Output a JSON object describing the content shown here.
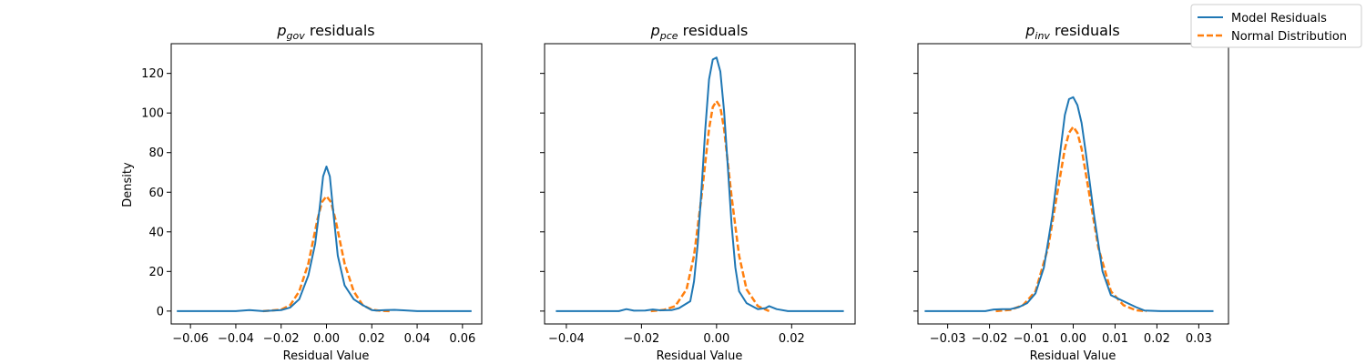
{
  "legend": {
    "items": [
      {
        "label": "Model Residuals",
        "color": "#1f77b4",
        "style": "solid"
      },
      {
        "label": "Normal Distribution",
        "color": "#ff7f0e",
        "style": "dashed"
      }
    ],
    "placement": "top-right"
  },
  "chart_data": [
    {
      "type": "line",
      "title_main": "p",
      "title_sub": "gov",
      "title_rest": " residuals",
      "xlabel": "Residual Value",
      "ylabel": "Density",
      "xlim": [
        -0.0685,
        0.0685
      ],
      "ylim": [
        -6.5,
        135
      ],
      "xticks": [
        -0.06,
        -0.04,
        -0.02,
        0.0,
        0.02,
        0.04,
        0.06
      ],
      "xtick_labels": [
        "−0.06",
        "−0.04",
        "−0.02",
        "0.00",
        "0.02",
        "0.04",
        "0.06"
      ],
      "yticks": [
        0,
        20,
        40,
        60,
        80,
        100,
        120
      ],
      "ytick_labels": [
        "0",
        "20",
        "40",
        "60",
        "80",
        "100",
        "120"
      ],
      "show_ytick_labels": true,
      "series": [
        {
          "name": "Model Residuals",
          "x": [
            -0.066,
            -0.04,
            -0.034,
            -0.028,
            -0.02,
            -0.016,
            -0.012,
            -0.008,
            -0.005,
            -0.003,
            -0.0015,
            0.0,
            0.0015,
            0.003,
            0.005,
            0.008,
            0.012,
            0.016,
            0.02,
            0.022,
            0.026,
            0.03,
            0.034,
            0.04,
            0.064
          ],
          "y": [
            0,
            0,
            0.5,
            0,
            0.5,
            1.8,
            6,
            18,
            34,
            52,
            68,
            73,
            68,
            50,
            28,
            13,
            6,
            3,
            0.5,
            0.3,
            0.5,
            0.6,
            0.4,
            0,
            0
          ]
        },
        {
          "name": "Normal Distribution",
          "x": [
            -0.028,
            -0.02,
            -0.016,
            -0.012,
            -0.008,
            -0.004,
            -0.002,
            0.0,
            0.002,
            0.004,
            0.008,
            0.012,
            0.016,
            0.02,
            0.024,
            0.028
          ],
          "y": [
            0,
            0.7,
            3,
            10,
            24,
            46,
            55,
            58,
            55,
            46,
            24,
            10,
            3,
            0.7,
            0.1,
            0
          ]
        }
      ]
    },
    {
      "type": "line",
      "title_main": "p",
      "title_sub": "pce",
      "title_rest": " residuals",
      "xlabel": "Residual Value",
      "ylabel": "",
      "xlim": [
        -0.0458,
        0.0369
      ],
      "ylim": [
        -6.5,
        135
      ],
      "xticks": [
        -0.04,
        -0.02,
        0.0,
        0.02
      ],
      "xtick_labels": [
        "−0.04",
        "−0.02",
        "0.00",
        "0.02"
      ],
      "yticks": [
        0,
        20,
        40,
        60,
        80,
        100,
        120
      ],
      "ytick_labels": [
        "0",
        "20",
        "40",
        "60",
        "80",
        "100",
        "120"
      ],
      "show_ytick_labels": false,
      "series": [
        {
          "name": "Model Residuals",
          "x": [
            -0.0428,
            -0.026,
            -0.024,
            -0.022,
            -0.019,
            -0.017,
            -0.015,
            -0.012,
            -0.01,
            -0.007,
            -0.006,
            -0.005,
            -0.004,
            -0.003,
            -0.002,
            -0.001,
            0.0,
            0.001,
            0.002,
            0.003,
            0.004,
            0.005,
            0.006,
            0.008,
            0.011,
            0.013,
            0.014,
            0.016,
            0.019,
            0.0339
          ],
          "y": [
            0,
            0,
            1,
            0.2,
            0.3,
            0.8,
            0.4,
            0.5,
            1.5,
            5,
            15,
            34,
            62,
            92,
            117,
            127,
            128,
            121,
            101,
            73,
            44,
            22,
            10,
            4,
            1,
            1.5,
            2.5,
            1,
            0,
            0
          ]
        },
        {
          "name": "Normal Distribution",
          "x": [
            -0.0175,
            -0.014,
            -0.011,
            -0.008,
            -0.006,
            -0.004,
            -0.002,
            -0.001,
            0.0,
            0.001,
            0.002,
            0.004,
            0.006,
            0.008,
            0.011,
            0.014
          ],
          "y": [
            0,
            0.6,
            2.5,
            11,
            28,
            58,
            92,
            103,
            106,
            103,
            92,
            58,
            28,
            11,
            2.5,
            0
          ]
        }
      ]
    },
    {
      "type": "line",
      "title_main": "p",
      "title_sub": "inv",
      "title_rest": " residuals",
      "xlabel": "Residual Value",
      "ylabel": "",
      "xlim": [
        -0.0371,
        0.0371
      ],
      "ylim": [
        -6.5,
        135
      ],
      "xticks": [
        -0.03,
        -0.02,
        -0.01,
        0.0,
        0.01,
        0.02,
        0.03
      ],
      "xtick_labels": [
        "−0.03",
        "−0.02",
        "−0.01",
        "0.00",
        "0.01",
        "0.02",
        "0.03"
      ],
      "yticks": [
        0,
        20,
        40,
        60,
        80,
        100,
        120
      ],
      "ytick_labels": [
        "0",
        "20",
        "40",
        "60",
        "80",
        "100",
        "120"
      ],
      "show_ytick_labels": false,
      "series": [
        {
          "name": "Model Residuals",
          "x": [
            -0.0355,
            -0.021,
            -0.019,
            -0.017,
            -0.015,
            -0.013,
            -0.011,
            -0.009,
            -0.007,
            -0.005,
            -0.003,
            -0.002,
            -0.001,
            0.0,
            0.001,
            0.002,
            0.003,
            0.005,
            0.007,
            0.009,
            0.011,
            0.013,
            0.015,
            0.017,
            0.021,
            0.0335
          ],
          "y": [
            0,
            0,
            0.8,
            1,
            1,
            2,
            4,
            9,
            22,
            48,
            82,
            99,
            107,
            108,
            104,
            95,
            80,
            48,
            20,
            8,
            6,
            4,
            2,
            0.3,
            0,
            0
          ]
        },
        {
          "name": "Normal Distribution",
          "x": [
            -0.0185,
            -0.015,
            -0.012,
            -0.009,
            -0.006,
            -0.004,
            -0.002,
            -0.001,
            0.0,
            0.001,
            0.002,
            0.004,
            0.006,
            0.009,
            0.012,
            0.015,
            0.0175
          ],
          "y": [
            0,
            0.6,
            3,
            10,
            32,
            57,
            82,
            90,
            93,
            90,
            82,
            57,
            32,
            10,
            3,
            0.4,
            0
          ]
        }
      ]
    }
  ]
}
